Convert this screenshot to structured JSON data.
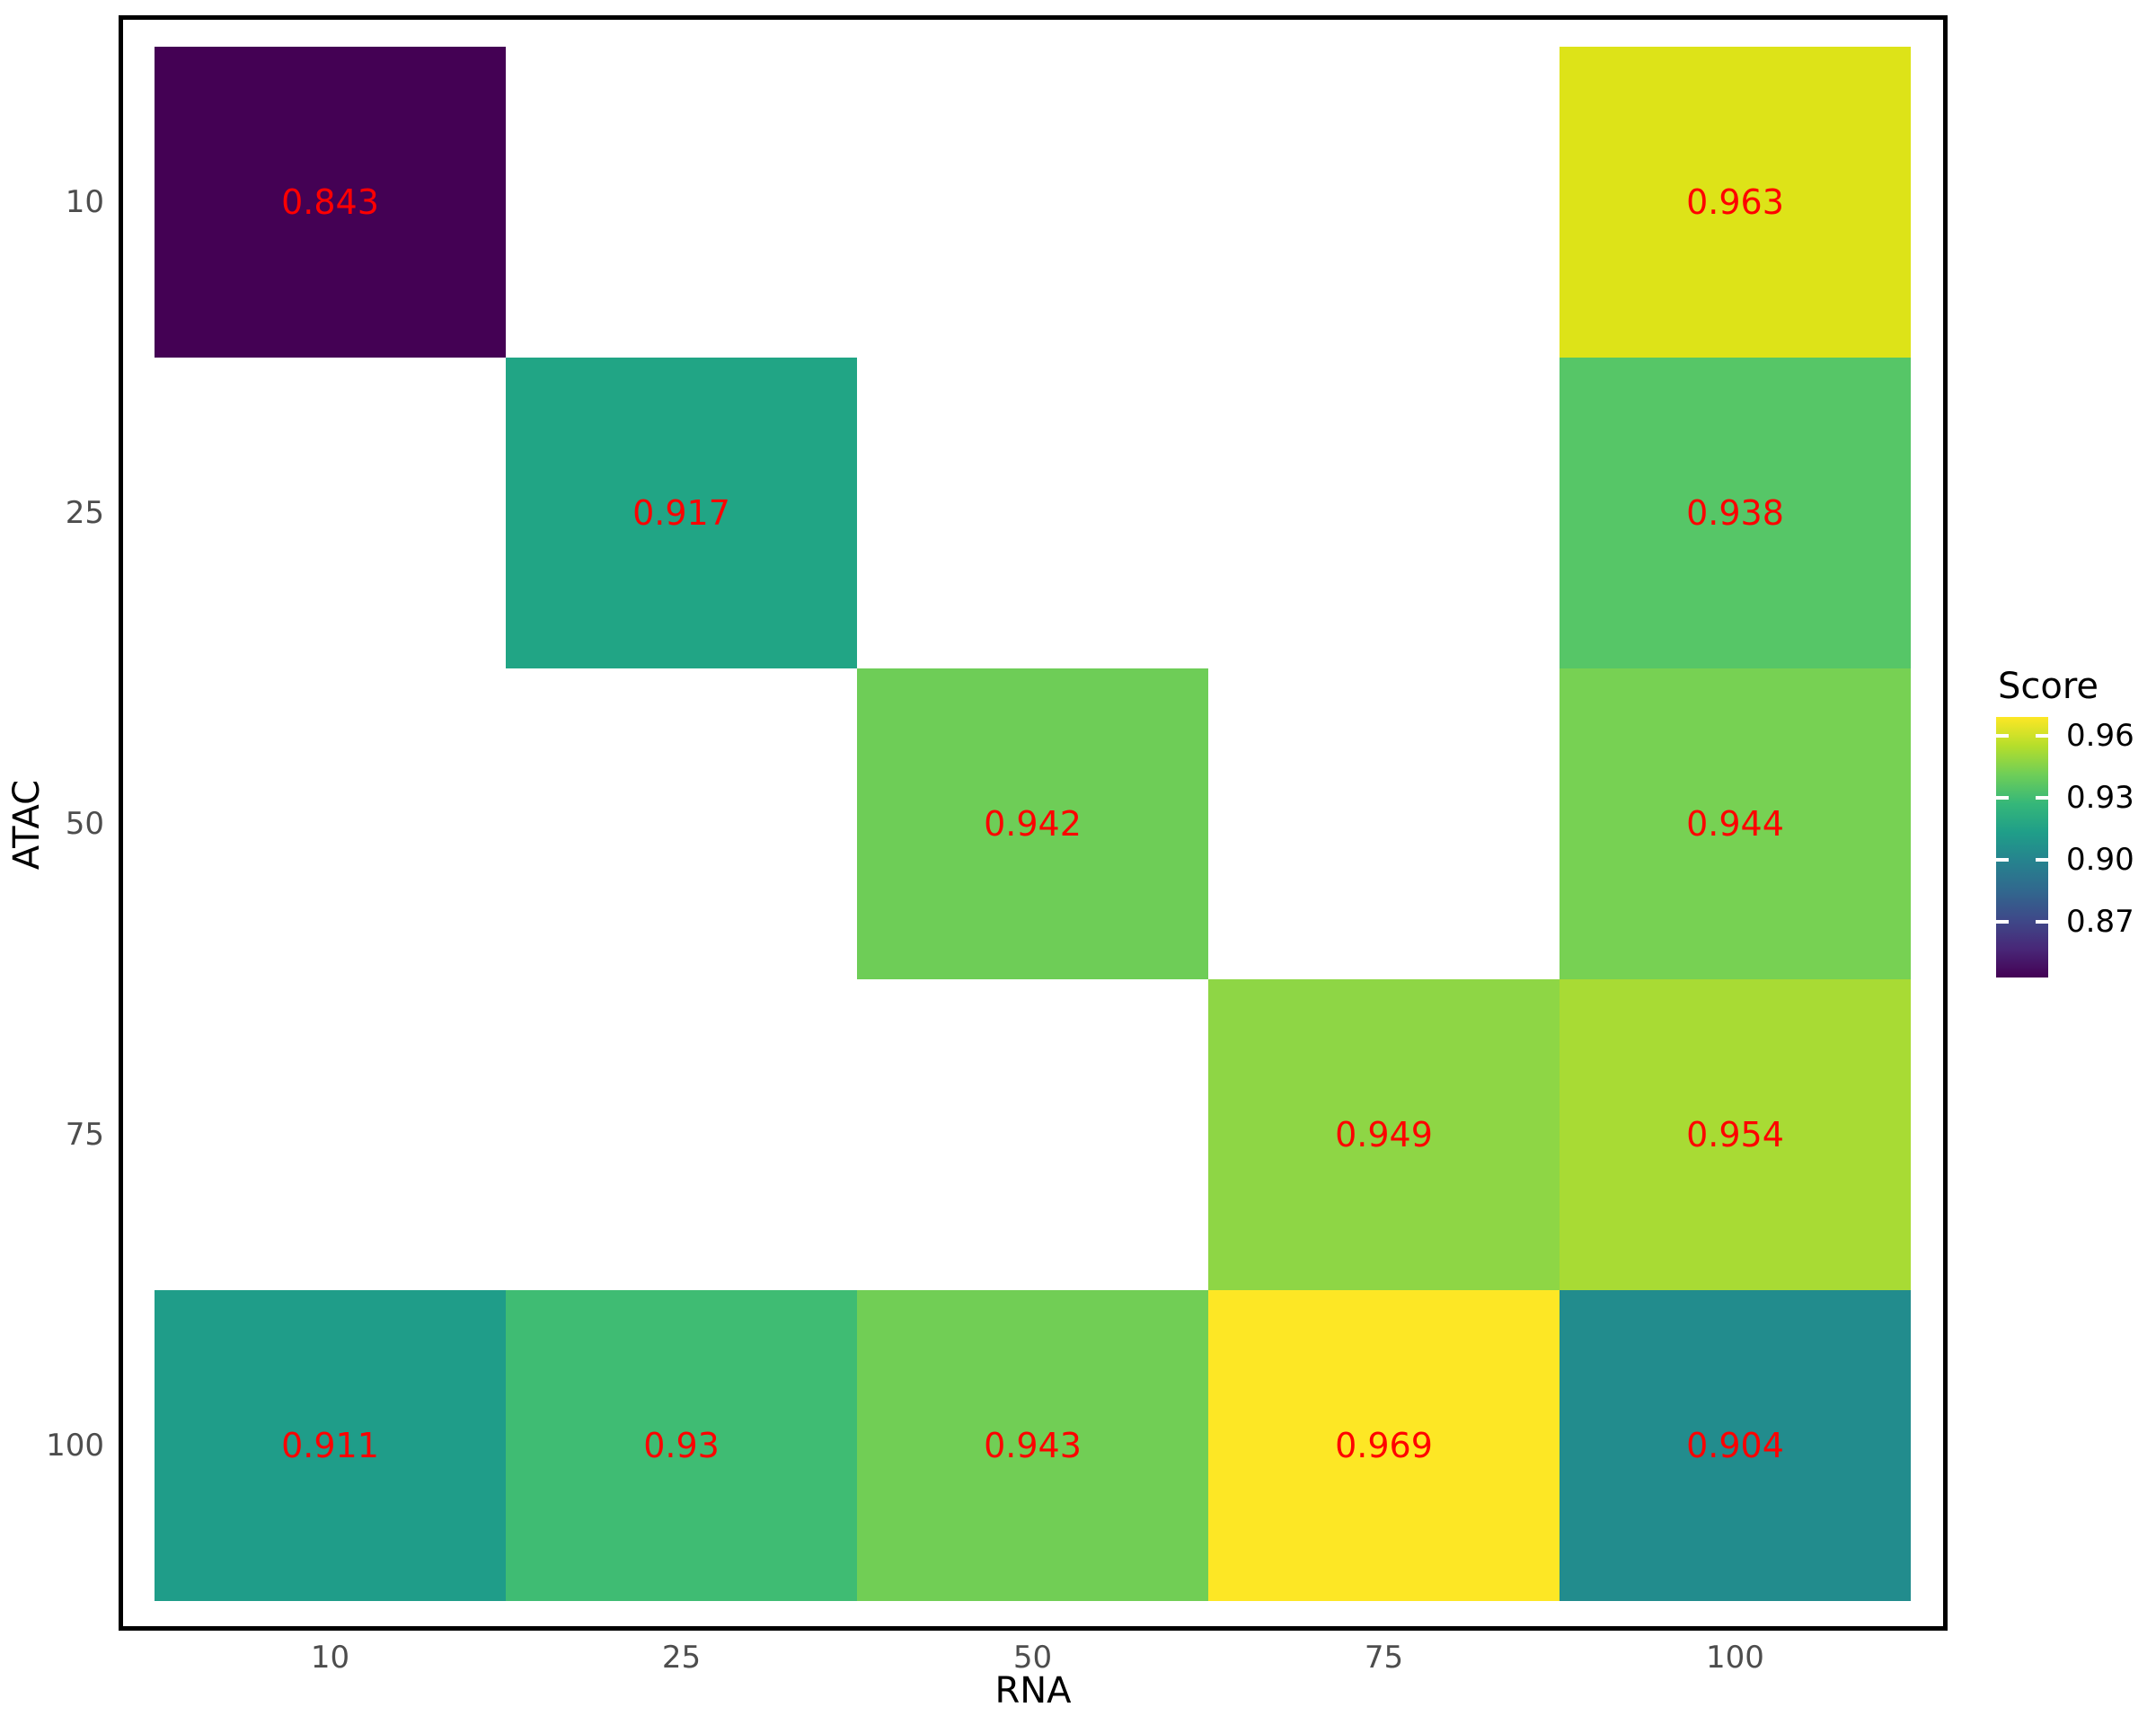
{
  "figure": {
    "background": "#ffffff"
  },
  "chart_data": {
    "type": "heatmap",
    "xlabel": "RNA",
    "ylabel": "ATAC",
    "x_categories": [
      "10",
      "25",
      "50",
      "75",
      "100"
    ],
    "y_categories": [
      "10",
      "25",
      "50",
      "75",
      "100"
    ],
    "value_label_color": "#ff0000",
    "cells": [
      {
        "rna": "10",
        "atac": "10",
        "value": "0.843",
        "color": "#440154"
      },
      {
        "rna": "100",
        "atac": "10",
        "value": "0.963",
        "color": "#dde318"
      },
      {
        "rna": "25",
        "atac": "25",
        "value": "0.917",
        "color": "#21a585"
      },
      {
        "rna": "100",
        "atac": "25",
        "value": "0.938",
        "color": "#56c667"
      },
      {
        "rna": "50",
        "atac": "50",
        "value": "0.942",
        "color": "#6ecd57"
      },
      {
        "rna": "100",
        "atac": "50",
        "value": "0.944",
        "color": "#77d153"
      },
      {
        "rna": "75",
        "atac": "75",
        "value": "0.949",
        "color": "#8ed645"
      },
      {
        "rna": "100",
        "atac": "75",
        "value": "0.954",
        "color": "#a8db34"
      },
      {
        "rna": "10",
        "atac": "100",
        "value": "0.911",
        "color": "#1f9d89"
      },
      {
        "rna": "25",
        "atac": "100",
        "value": "0.93",
        "color": "#3fbc73"
      },
      {
        "rna": "50",
        "atac": "100",
        "value": "0.943",
        "color": "#71ce55"
      },
      {
        "rna": "75",
        "atac": "100",
        "value": "0.969",
        "color": "#fde725"
      },
      {
        "rna": "100",
        "atac": "100",
        "value": "0.904",
        "color": "#228c8d"
      }
    ],
    "legend": {
      "title": "Score",
      "position": "right",
      "tick_labels": [
        "0.96",
        "0.93",
        "0.90",
        "0.87"
      ],
      "tick_values": [
        0.96,
        0.93,
        0.9,
        0.87
      ],
      "range": [
        0.843,
        0.969
      ],
      "gradient": [
        "#440154",
        "#482878",
        "#3e4989",
        "#31688e",
        "#26828e",
        "#1f9e89",
        "#35b779",
        "#6ece58",
        "#b5de2b",
        "#fde725"
      ]
    }
  }
}
